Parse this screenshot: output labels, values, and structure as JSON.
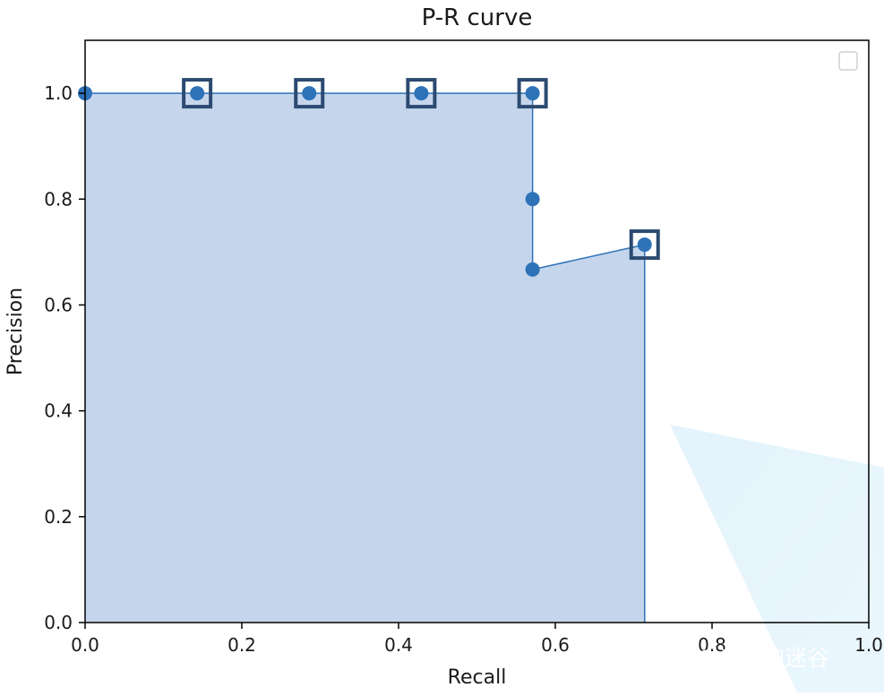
{
  "chart_data": {
    "type": "line",
    "title": "P-R curve",
    "xlabel": "Recall",
    "ylabel": "Precision",
    "xlim": [
      0.0,
      1.0
    ],
    "ylim": [
      0.0,
      1.1
    ],
    "xticks": [
      0.0,
      0.2,
      0.4,
      0.6,
      0.8,
      1.0
    ],
    "yticks": [
      0.0,
      0.2,
      0.4,
      0.6,
      0.8,
      1.0
    ],
    "xtick_labels": [
      "0.0",
      "0.2",
      "0.4",
      "0.6",
      "0.8",
      "1.0"
    ],
    "ytick_labels": [
      "0.0",
      "0.2",
      "0.4",
      "0.6",
      "0.8",
      "1.0"
    ],
    "grid": false,
    "legend": "top-right, empty",
    "fill": "area under the P-R curve shaded",
    "series": [
      {
        "points": [
          {
            "recall": 0.0,
            "precision": 1.0
          },
          {
            "recall": 0.143,
            "precision": 1.0
          },
          {
            "recall": 0.286,
            "precision": 1.0
          },
          {
            "recall": 0.429,
            "precision": 1.0
          },
          {
            "recall": 0.571,
            "precision": 1.0
          },
          {
            "recall": 0.571,
            "precision": 0.8
          },
          {
            "recall": 0.571,
            "precision": 0.667
          },
          {
            "recall": 0.714,
            "precision": 0.714
          }
        ],
        "highlighted_indices": [
          1,
          2,
          3,
          4,
          7
        ]
      }
    ],
    "colors": {
      "line": "#2e72b8",
      "marker": "#2e72b8",
      "fill": "#c5d6ec",
      "highlight_box": "#2c4a70"
    }
  },
  "watermark": "知乎 @记忆的迷谷"
}
